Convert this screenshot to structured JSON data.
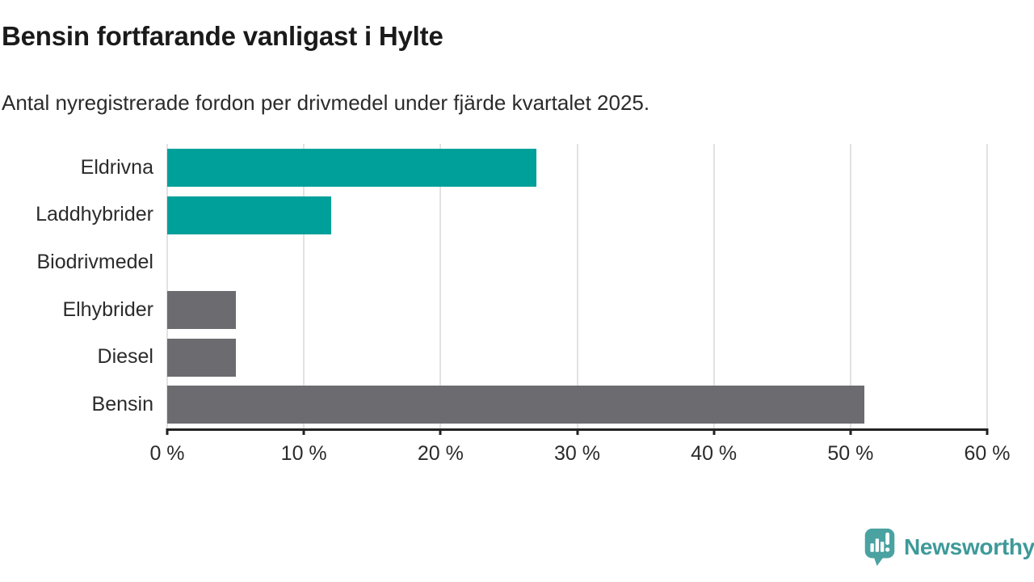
{
  "header": {
    "title": "Bensin fortfarande vanligast i Hylte",
    "subtitle": "Antal nyregistrerade fordon per drivmedel under fjärde kvartalet 2025."
  },
  "chart_data": {
    "type": "bar",
    "orientation": "horizontal",
    "title": "Bensin fortfarande vanligast i Hylte",
    "subtitle": "Antal nyregistrerade fordon per drivmedel under fjärde kvartalet 2025.",
    "categories": [
      "Eldrivna",
      "Laddhybrider",
      "Biodrivmedel",
      "Elhybrider",
      "Diesel",
      "Bensin"
    ],
    "values": [
      27,
      12,
      0,
      5,
      5,
      51
    ],
    "unit": "%",
    "bar_colors": [
      "#00a09a",
      "#00a09a",
      "#00a09a",
      "#6b6b70",
      "#6b6b70",
      "#6b6b70"
    ],
    "xlabel": "",
    "ylabel": "",
    "xlim": [
      0,
      60
    ],
    "x_ticks": [
      0,
      10,
      20,
      30,
      40,
      50,
      60
    ],
    "x_tick_labels": [
      "0 %",
      "10 %",
      "20 %",
      "30 %",
      "40 %",
      "50 %",
      "60 %"
    ],
    "grid": "vertical",
    "legend": "none",
    "colors": {
      "accent_teal": "#00a09a",
      "neutral_gray": "#6b6b70",
      "gridline": "#e2e2e2",
      "axis": "#222222"
    }
  },
  "footer": {
    "brand": "Newsworthy",
    "logo_color": "#4aa2a1",
    "brand_text_color": "#3d9a99"
  }
}
